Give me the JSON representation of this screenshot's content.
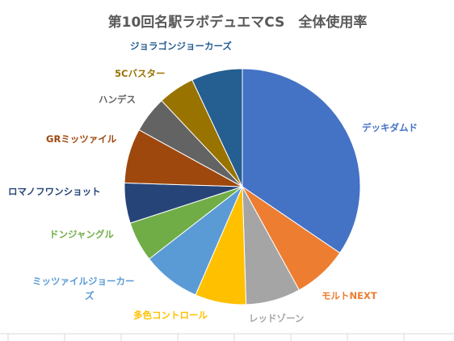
{
  "chart_data": {
    "type": "pie",
    "title": "第10回名駅ラボデュエマCS　全体使用率",
    "start_angle_deg": 0,
    "direction": "clockwise",
    "slices": [
      {
        "label": "デッキダムド",
        "value": 34.5,
        "color": "#4472C4"
      },
      {
        "label": "モルトNEXT",
        "value": 7.5,
        "color": "#ED7D31"
      },
      {
        "label": "レッドゾーン",
        "value": 7.5,
        "color": "#A5A5A5"
      },
      {
        "label": "多色コントロール",
        "value": 7.0,
        "color": "#FFC000"
      },
      {
        "label": "ミッツァイルジョーカーズ",
        "value": 8.0,
        "color": "#5B9BD5"
      },
      {
        "label": "ドンジャングル",
        "value": 5.5,
        "color": "#70AD47"
      },
      {
        "label": "ロマノフワンショット",
        "value": 5.5,
        "color": "#264478"
      },
      {
        "label": "GRミッツァイル",
        "value": 7.5,
        "color": "#9E480E"
      },
      {
        "label": "ハンデス",
        "value": 5.0,
        "color": "#636363"
      },
      {
        "label": "5Cバスター",
        "value": 5.0,
        "color": "#997300"
      },
      {
        "label": "ジョラゴンジョーカーズ",
        "value": 7.0,
        "color": "#255E91"
      }
    ]
  }
}
